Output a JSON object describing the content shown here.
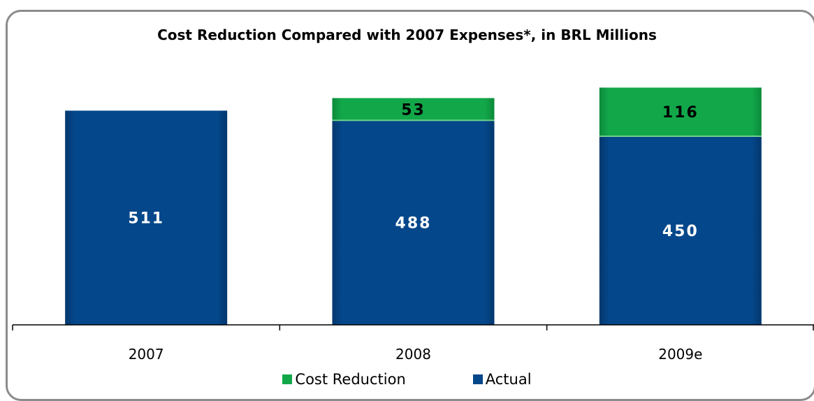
{
  "chart_data": {
    "type": "bar",
    "stacked": true,
    "title": "Cost Reduction Compared with 2007 Expenses*, in BRL Millions",
    "categories": [
      "2007",
      "2008",
      "2009e"
    ],
    "series": [
      {
        "name": "Actual",
        "values": [
          511,
          488,
          450
        ],
        "color": "#04478a"
      },
      {
        "name": "Cost Reduction",
        "values": [
          null,
          53,
          116
        ],
        "color": "#12a84a"
      }
    ],
    "ylim": [
      0,
      600
    ],
    "grid": false,
    "legend_position": "bottom"
  },
  "legend": [
    {
      "label": "Cost Reduction",
      "color": "#12a84a"
    },
    {
      "label": "Actual",
      "color": "#04478a"
    }
  ]
}
